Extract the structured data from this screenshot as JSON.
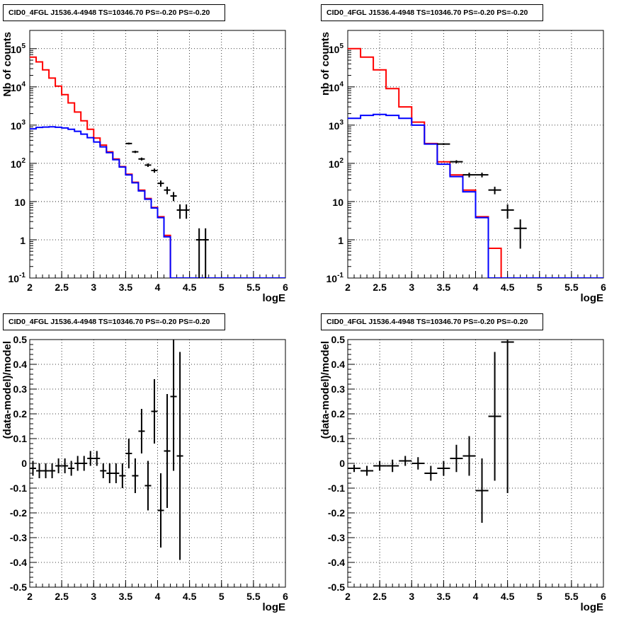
{
  "panels": [
    {
      "title": "CID0_4FGL J1536.4-4948 TS=10346.70 PS=-0.20 PS=-0.20"
    },
    {
      "title": "CID0_4FGL J1536.4-4948 TS=10346.70 PS=-0.20 PS=-0.20"
    },
    {
      "title": "CID0_4FGL J1536.4-4948 TS=10346.70 PS=-0.20 PS=-0.20"
    },
    {
      "title": "CID0_4FGL J1536.4-4948 TS=10346.70 PS=-0.20 PS=-0.20"
    }
  ],
  "colors": {
    "model_total": "#ff0000",
    "model_bkg": "#0000ff",
    "data": "#000000"
  },
  "chart_data": [
    {
      "type": "line",
      "title": "CID0_4FGL J1536.4-4948 TS=10346.70 PS=-0.20 PS=-0.20",
      "xlabel": "logE",
      "ylabel": "Nb of counts",
      "xlim": [
        2,
        6
      ],
      "ylim": [
        0.1,
        300000
      ],
      "yscale": "log",
      "grid": true,
      "x_ticks": [
        "2",
        "2.5",
        "3",
        "3.5",
        "4",
        "4.5",
        "5",
        "5.5",
        "6"
      ],
      "y_ticks": [
        "10^-1",
        "1",
        "10",
        "10^2",
        "10^3",
        "10^4",
        "10^5"
      ],
      "bin_edges_start": 2,
      "bin_width": 0.1,
      "series": [
        {
          "style": "step",
          "color": "#ff0000",
          "values": [
            60000,
            45000,
            28000,
            17000,
            10500,
            6300,
            3800,
            2200,
            1300,
            780,
            460,
            300,
            200,
            130,
            82,
            52,
            32,
            20,
            12,
            7,
            4,
            1.3,
            0.1,
            0.1,
            0.1,
            0.1,
            0.1,
            0.1,
            0.1,
            0.1,
            0.1,
            0.1,
            0.1,
            0.1,
            0.1,
            0.1,
            0.1,
            0.1,
            0.1,
            0.1
          ]
        },
        {
          "style": "step",
          "color": "#0000ff",
          "values": [
            800,
            870,
            890,
            900,
            880,
            840,
            780,
            690,
            580,
            470,
            360,
            270,
            190,
            125,
            80,
            50,
            31,
            19,
            11.5,
            6.8,
            3.8,
            1.2,
            0.1,
            0.1,
            0.1,
            0.1,
            0.1,
            0.1,
            0.1,
            0.1,
            0.1,
            0.1,
            0.1,
            0.1,
            0.1,
            0.1,
            0.1,
            0.1,
            0.1,
            0.1
          ]
        },
        {
          "style": "errorbar",
          "color": "#000000",
          "x": [
            3.55,
            3.65,
            3.75,
            3.85,
            3.95,
            4.05,
            4.15,
            4.25,
            4.35,
            4.45,
            4.55,
            4.65,
            4.75
          ],
          "y": [
            330,
            200,
            130,
            90,
            65,
            30,
            20,
            14,
            6,
            6,
            0.1,
            1,
            1
          ]
        }
      ]
    },
    {
      "type": "line",
      "title": "CID0_4FGL J1536.4-4948 TS=10346.70 PS=-0.20 PS=-0.20",
      "xlabel": "logE",
      "ylabel": "nb of counts",
      "xlim": [
        2,
        6
      ],
      "ylim": [
        0.1,
        300000
      ],
      "yscale": "log",
      "grid": true,
      "x_ticks": [
        "2",
        "2.5",
        "3",
        "3.5",
        "4",
        "4.5",
        "5",
        "5.5",
        "6"
      ],
      "y_ticks": [
        "10^-1",
        "1",
        "10",
        "10^2",
        "10^3",
        "10^4",
        "10^5"
      ],
      "bin_edges_start": 2,
      "bin_width": 0.2,
      "series": [
        {
          "style": "step",
          "color": "#ff0000",
          "values": [
            100000,
            60000,
            28000,
            9000,
            3000,
            1200,
            330,
            110,
            50,
            20,
            4,
            0.6,
            0.1,
            0.1,
            0.1,
            0.1,
            0.1,
            0.1,
            0.1,
            0.1
          ]
        },
        {
          "style": "step",
          "color": "#0000ff",
          "values": [
            1500,
            1800,
            1900,
            1800,
            1500,
            1000,
            320,
            95,
            45,
            18,
            3.8,
            0.1,
            0.1,
            0.1,
            0.1,
            0.1,
            0.1,
            0.1,
            0.1,
            0.1
          ]
        },
        {
          "style": "errorbar",
          "color": "#000000",
          "x": [
            3.5,
            3.7,
            3.9,
            4.1,
            4.3,
            4.5,
            4.7
          ],
          "y": [
            320,
            110,
            50,
            50,
            20,
            6,
            2
          ]
        }
      ]
    },
    {
      "type": "scatter",
      "title": "CID0_4FGL J1536.4-4948 TS=10346.70 PS=-0.20 PS=-0.20",
      "xlabel": "logE",
      "ylabel": "(data-model)/model",
      "xlim": [
        2,
        6
      ],
      "ylim": [
        -0.5,
        0.5
      ],
      "grid": true,
      "x_ticks": [
        "2",
        "2.5",
        "3",
        "3.5",
        "4",
        "4.5",
        "5",
        "5.5",
        "6"
      ],
      "y_ticks": [
        "-0.5",
        "-0.4",
        "-0.3",
        "-0.2",
        "-0.1",
        "0",
        "0.1",
        "0.2",
        "0.3",
        "0.4",
        "0.5"
      ],
      "bin_width": 0.1,
      "x": [
        2.05,
        2.15,
        2.25,
        2.35,
        2.45,
        2.55,
        2.65,
        2.75,
        2.85,
        2.95,
        3.05,
        3.15,
        3.25,
        3.35,
        3.45,
        3.55,
        3.65,
        3.75,
        3.85,
        3.95,
        4.05,
        4.15,
        4.25,
        4.35
      ],
      "y": [
        -0.02,
        -0.03,
        -0.03,
        -0.03,
        -0.01,
        -0.01,
        -0.02,
        0,
        0,
        0.02,
        0.02,
        -0.03,
        -0.04,
        -0.04,
        -0.05,
        0.04,
        -0.05,
        0.13,
        -0.09,
        0.21,
        -0.19,
        0.05,
        0.27,
        0.03
      ],
      "yerr": [
        0.03,
        0.03,
        0.03,
        0.03,
        0.03,
        0.03,
        0.03,
        0.03,
        0.03,
        0.03,
        0.03,
        0.03,
        0.04,
        0.04,
        0.05,
        0.06,
        0.07,
        0.09,
        0.1,
        0.13,
        0.15,
        0.23,
        0.3,
        0.42
      ]
    },
    {
      "type": "scatter",
      "title": "CID0_4FGL J1536.4-4948 TS=10346.70 PS=-0.20 PS=-0.20",
      "xlabel": "logE",
      "ylabel": "(data-model)/model",
      "xlim": [
        2,
        6
      ],
      "ylim": [
        -0.5,
        0.5
      ],
      "grid": true,
      "x_ticks": [
        "2",
        "2.5",
        "3",
        "3.5",
        "4",
        "4.5",
        "5",
        "5.5",
        "6"
      ],
      "y_ticks": [
        "-0.5",
        "-0.4",
        "-0.3",
        "-0.2",
        "-0.1",
        "0",
        "0.1",
        "0.2",
        "0.3",
        "0.4",
        "0.5"
      ],
      "bin_width": 0.2,
      "x": [
        2.1,
        2.3,
        2.5,
        2.7,
        2.9,
        3.1,
        3.3,
        3.5,
        3.7,
        3.9,
        4.1,
        4.3,
        4.5
      ],
      "y": [
        -0.02,
        -0.03,
        -0.01,
        -0.01,
        0.01,
        0,
        -0.04,
        -0.02,
        0.02,
        0.03,
        -0.11,
        0.19,
        0.49
      ],
      "yerr": [
        0.015,
        0.02,
        0.02,
        0.025,
        0.02,
        0.025,
        0.03,
        0.03,
        0.055,
        0.08,
        0.13,
        0.26,
        0.61
      ]
    }
  ]
}
